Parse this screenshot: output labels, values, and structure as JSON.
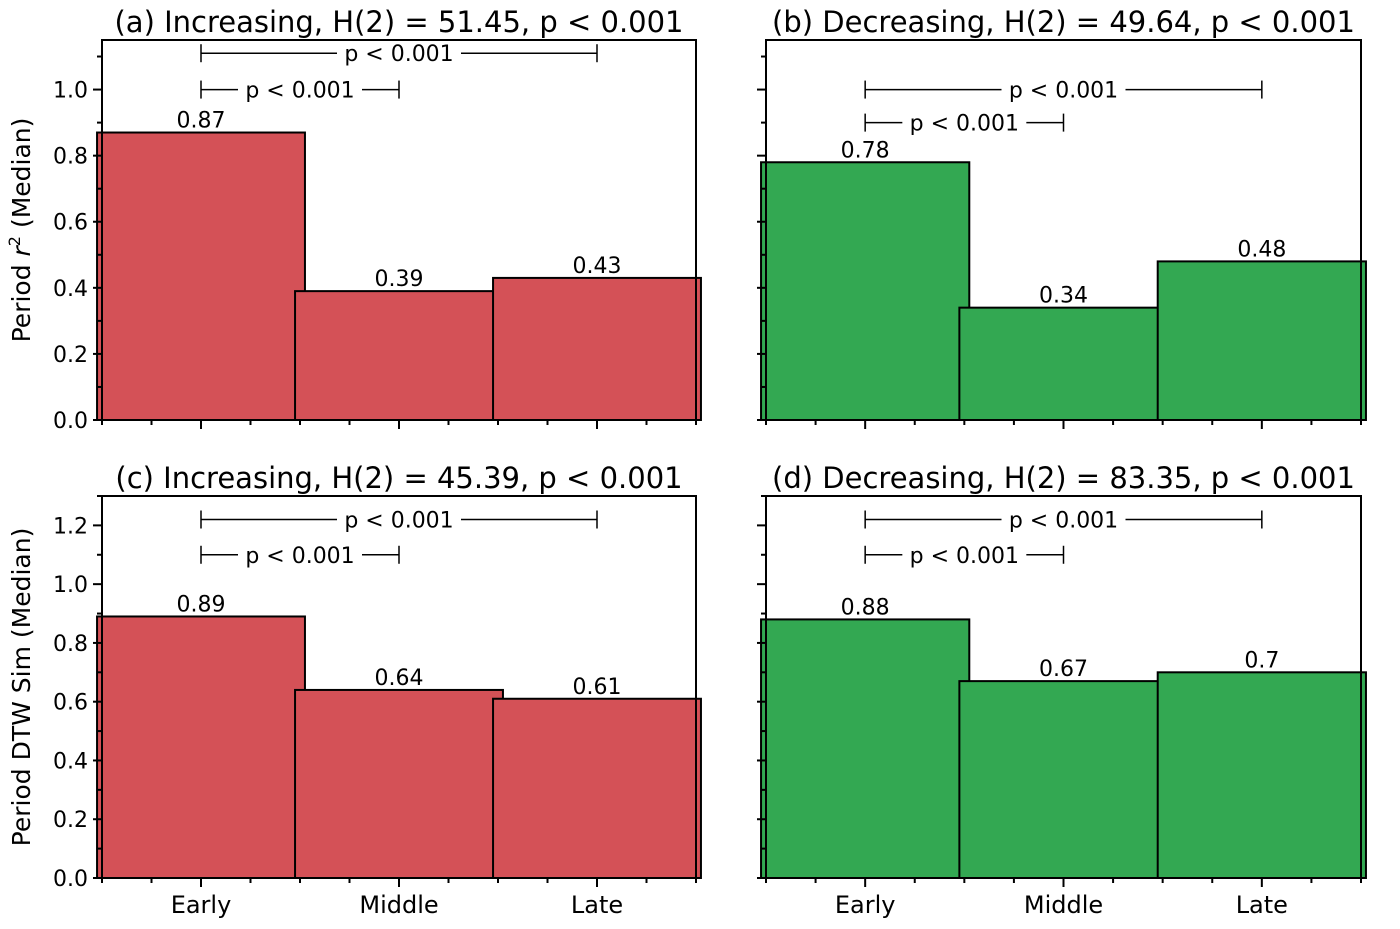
{
  "figure": {
    "row_ylabels": [
      "Period r² (Median)",
      "Period DTW Sim (Median)"
    ]
  },
  "chart_data": [
    {
      "type": "bar",
      "title": "(a) Increasing, H(2) = 51.45, p < 0.001",
      "categories": [
        "Early",
        "Middle",
        "Late"
      ],
      "values": [
        0.87,
        0.39,
        0.43
      ],
      "value_labels": [
        "0.87",
        "0.39",
        "0.43"
      ],
      "ylabel": "Period r² (Median)",
      "ylabel_parts": [
        "Period ",
        "r",
        "2",
        " (Median)"
      ],
      "ylim": [
        0,
        1.15
      ],
      "yticks": [
        0.0,
        0.2,
        0.4,
        0.6,
        0.8,
        1.0
      ],
      "ytick_labels": [
        "0.0",
        "0.2",
        "0.4",
        "0.6",
        "0.8",
        "1.0"
      ],
      "show_xtick_labels": false,
      "color": "#d45157",
      "brackets": [
        {
          "from": "Early",
          "to": "Late",
          "level": 1.11,
          "label": "p < 0.001"
        },
        {
          "from": "Early",
          "to": "Middle",
          "level": 1.0,
          "label": "p < 0.001"
        }
      ]
    },
    {
      "type": "bar",
      "title": "(b) Decreasing, H(2) = 49.64, p < 0.001",
      "categories": [
        "Early",
        "Middle",
        "Late"
      ],
      "values": [
        0.78,
        0.34,
        0.48
      ],
      "value_labels": [
        "0.78",
        "0.34",
        "0.48"
      ],
      "ylim": [
        0,
        1.15
      ],
      "yticks": [
        0.0,
        0.2,
        0.4,
        0.6,
        0.8,
        1.0
      ],
      "show_ytick_labels": false,
      "show_xtick_labels": false,
      "color": "#33a852",
      "brackets": [
        {
          "from": "Early",
          "to": "Late",
          "level": 1.0,
          "label": "p < 0.001"
        },
        {
          "from": "Early",
          "to": "Middle",
          "level": 0.9,
          "label": "p < 0.001"
        }
      ]
    },
    {
      "type": "bar",
      "title": "(c) Increasing, H(2) = 45.39, p < 0.001",
      "categories": [
        "Early",
        "Middle",
        "Late"
      ],
      "values": [
        0.89,
        0.64,
        0.61
      ],
      "value_labels": [
        "0.89",
        "0.64",
        "0.61"
      ],
      "ylabel": "Period DTW Sim (Median)",
      "ylim": [
        0,
        1.3
      ],
      "yticks": [
        0.0,
        0.2,
        0.4,
        0.6,
        0.8,
        1.0,
        1.2
      ],
      "ytick_labels": [
        "0.0",
        "0.2",
        "0.4",
        "0.6",
        "0.8",
        "1.0",
        "1.2"
      ],
      "show_xtick_labels": true,
      "color": "#d45157",
      "brackets": [
        {
          "from": "Early",
          "to": "Late",
          "level": 1.22,
          "label": "p < 0.001"
        },
        {
          "from": "Early",
          "to": "Middle",
          "level": 1.1,
          "label": "p < 0.001"
        }
      ]
    },
    {
      "type": "bar",
      "title": "(d) Decreasing, H(2) = 83.35, p < 0.001",
      "categories": [
        "Early",
        "Middle",
        "Late"
      ],
      "values": [
        0.88,
        0.67,
        0.7
      ],
      "value_labels": [
        "0.88",
        "0.67",
        "0.7"
      ],
      "ylim": [
        0,
        1.3
      ],
      "yticks": [
        0.0,
        0.2,
        0.4,
        0.6,
        0.8,
        1.0,
        1.2
      ],
      "show_ytick_labels": false,
      "show_xtick_labels": true,
      "color": "#33a852",
      "brackets": [
        {
          "from": "Early",
          "to": "Late",
          "level": 1.22,
          "label": "p < 0.001"
        },
        {
          "from": "Early",
          "to": "Middle",
          "level": 1.1,
          "label": "p < 0.001"
        }
      ]
    }
  ]
}
